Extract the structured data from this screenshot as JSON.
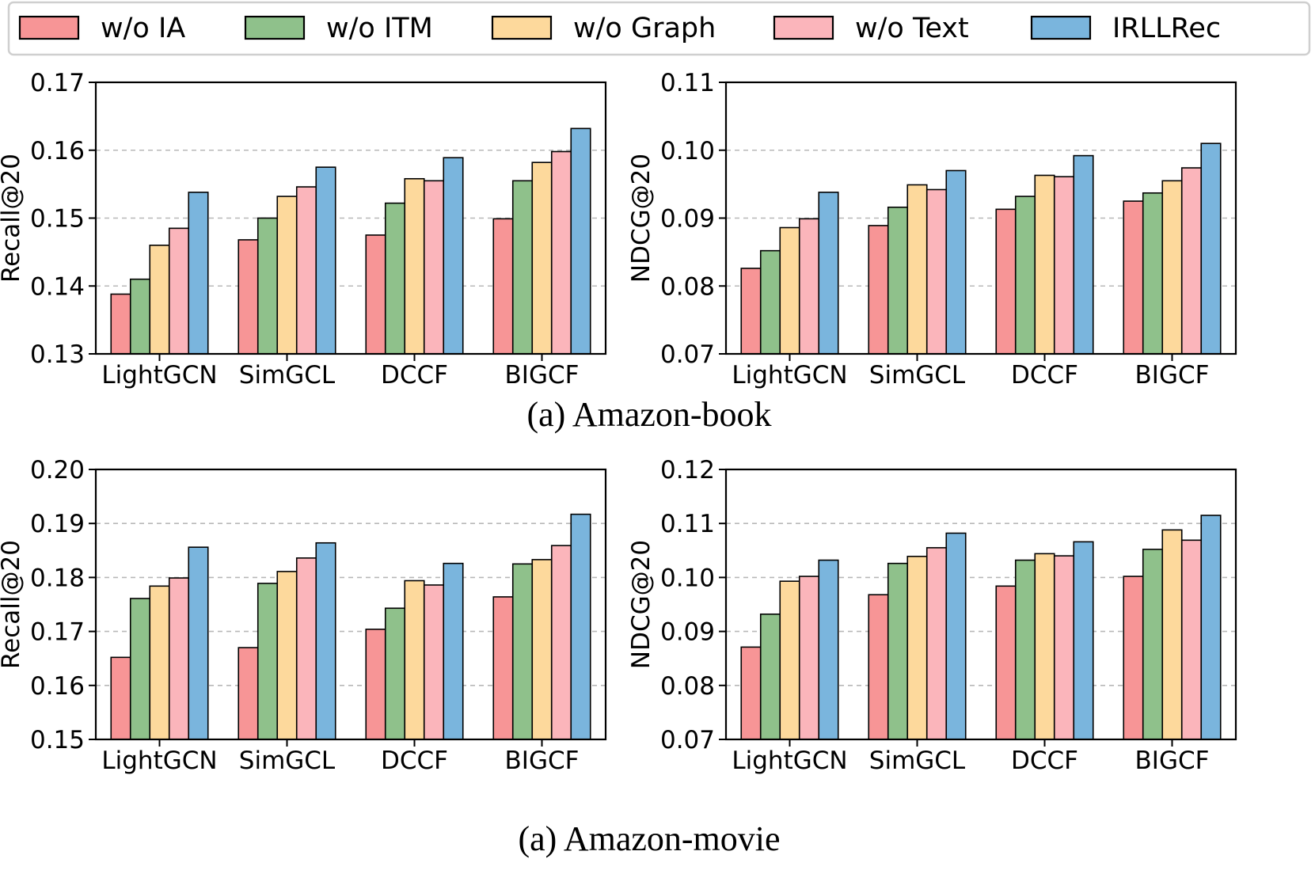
{
  "legend": [
    {
      "label": "w/o IA",
      "color": "#f79596"
    },
    {
      "label": "w/o ITM",
      "color": "#8fc18b"
    },
    {
      "label": "w/o Graph",
      "color": "#fdd99c"
    },
    {
      "label": "w/o Text",
      "color": "#fbb5bb"
    },
    {
      "label": "IRLLRec",
      "color": "#7ab5dd"
    }
  ],
  "captions": [
    "(a) Amazon-book",
    "(a) Amazon-movie"
  ],
  "chart_data": [
    {
      "type": "bar",
      "categories": [
        "LightGCN",
        "SimGCL",
        "DCCF",
        "BIGCF"
      ],
      "ylabel": "Recall@20",
      "ylim": [
        0.13,
        0.17
      ],
      "yticks": [
        "0.13",
        "0.14",
        "0.15",
        "0.16",
        "0.17"
      ],
      "grid": true,
      "series": [
        {
          "name": "w/o IA",
          "values": [
            0.1388,
            0.1468,
            0.1475,
            0.1499
          ]
        },
        {
          "name": "w/o ITM",
          "values": [
            0.141,
            0.15,
            0.1522,
            0.1555
          ]
        },
        {
          "name": "w/o Graph",
          "values": [
            0.146,
            0.1532,
            0.1558,
            0.1582
          ]
        },
        {
          "name": "w/o Text",
          "values": [
            0.1485,
            0.1546,
            0.1555,
            0.1598
          ]
        },
        {
          "name": "IRLLRec",
          "values": [
            0.1538,
            0.1575,
            0.1589,
            0.1632
          ]
        }
      ]
    },
    {
      "type": "bar",
      "categories": [
        "LightGCN",
        "SimGCL",
        "DCCF",
        "BIGCF"
      ],
      "ylabel": "NDCG@20",
      "ylim": [
        0.07,
        0.11
      ],
      "yticks": [
        "0.07",
        "0.08",
        "0.09",
        "0.10",
        "0.11"
      ],
      "grid": true,
      "series": [
        {
          "name": "w/o IA",
          "values": [
            0.0826,
            0.0889,
            0.0913,
            0.0925
          ]
        },
        {
          "name": "w/o ITM",
          "values": [
            0.0852,
            0.0916,
            0.0932,
            0.0937
          ]
        },
        {
          "name": "w/o Graph",
          "values": [
            0.0886,
            0.0949,
            0.0963,
            0.0955
          ]
        },
        {
          "name": "w/o Text",
          "values": [
            0.0899,
            0.0942,
            0.0961,
            0.0974
          ]
        },
        {
          "name": "IRLLRec",
          "values": [
            0.0938,
            0.097,
            0.0992,
            0.101
          ]
        }
      ]
    },
    {
      "type": "bar",
      "categories": [
        "LightGCN",
        "SimGCL",
        "DCCF",
        "BIGCF"
      ],
      "ylabel": "Recall@20",
      "ylim": [
        0.15,
        0.2
      ],
      "yticks": [
        "0.15",
        "0.16",
        "0.17",
        "0.18",
        "0.19",
        "0.20"
      ],
      "grid": true,
      "series": [
        {
          "name": "w/o IA",
          "values": [
            0.1652,
            0.167,
            0.1704,
            0.1764
          ]
        },
        {
          "name": "w/o ITM",
          "values": [
            0.1761,
            0.1789,
            0.1743,
            0.1825
          ]
        },
        {
          "name": "w/o Graph",
          "values": [
            0.1784,
            0.1811,
            0.1794,
            0.1833
          ]
        },
        {
          "name": "w/o Text",
          "values": [
            0.1799,
            0.1836,
            0.1786,
            0.1859
          ]
        },
        {
          "name": "IRLLRec",
          "values": [
            0.1856,
            0.1864,
            0.1826,
            0.1917
          ]
        }
      ]
    },
    {
      "type": "bar",
      "categories": [
        "LightGCN",
        "SimGCL",
        "DCCF",
        "BIGCF"
      ],
      "ylabel": "NDCG@20",
      "ylim": [
        0.07,
        0.12
      ],
      "yticks": [
        "0.07",
        "0.08",
        "0.09",
        "0.10",
        "0.11",
        "0.12"
      ],
      "grid": true,
      "series": [
        {
          "name": "w/o IA",
          "values": [
            0.0871,
            0.0968,
            0.0984,
            0.1002
          ]
        },
        {
          "name": "w/o ITM",
          "values": [
            0.0932,
            0.1026,
            0.1032,
            0.1052
          ]
        },
        {
          "name": "w/o Graph",
          "values": [
            0.0993,
            0.1039,
            0.1044,
            0.1088
          ]
        },
        {
          "name": "w/o Text",
          "values": [
            0.1002,
            0.1055,
            0.104,
            0.1069
          ]
        },
        {
          "name": "IRLLRec",
          "values": [
            0.1032,
            0.1082,
            0.1066,
            0.1115
          ]
        }
      ]
    }
  ]
}
